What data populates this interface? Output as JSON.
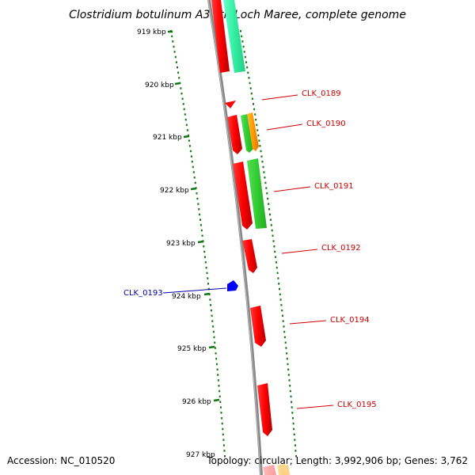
{
  "title": "Clostridium botulinum A3 str. Loch Maree, complete genome",
  "footer": {
    "accession": "Accession: NC_010520",
    "topology": "Topology: circular; Length: 3,992,906 bp; Genes: 3,762"
  },
  "ruler": {
    "labels": [
      "919 kbp",
      "920 kbp",
      "921 kbp",
      "922 kbp",
      "923 kbp",
      "924 kbp",
      "925 kbp",
      "926 kbp",
      "927 kbp"
    ]
  },
  "genes": [
    {
      "label": "CLK_0189",
      "color": "#cc0000"
    },
    {
      "label": "CLK_0190",
      "color": "#cc0000"
    },
    {
      "label": "CLK_0191",
      "color": "#cc0000"
    },
    {
      "label": "CLK_0192",
      "color": "#cc0000"
    },
    {
      "label": "CLK_0193",
      "color": "#0000aa"
    },
    {
      "label": "CLK_0194",
      "color": "#cc0000"
    },
    {
      "label": "CLK_0195",
      "color": "#cc0000"
    }
  ],
  "colors": {
    "cds_red": "#ff0000",
    "cds_green": "#33cc33",
    "cds_teal": "#33eea0",
    "cds_orange": "#ff9900",
    "cds_blue": "#0000ff",
    "backbone": "#888888",
    "ruler_green": "#117711"
  }
}
